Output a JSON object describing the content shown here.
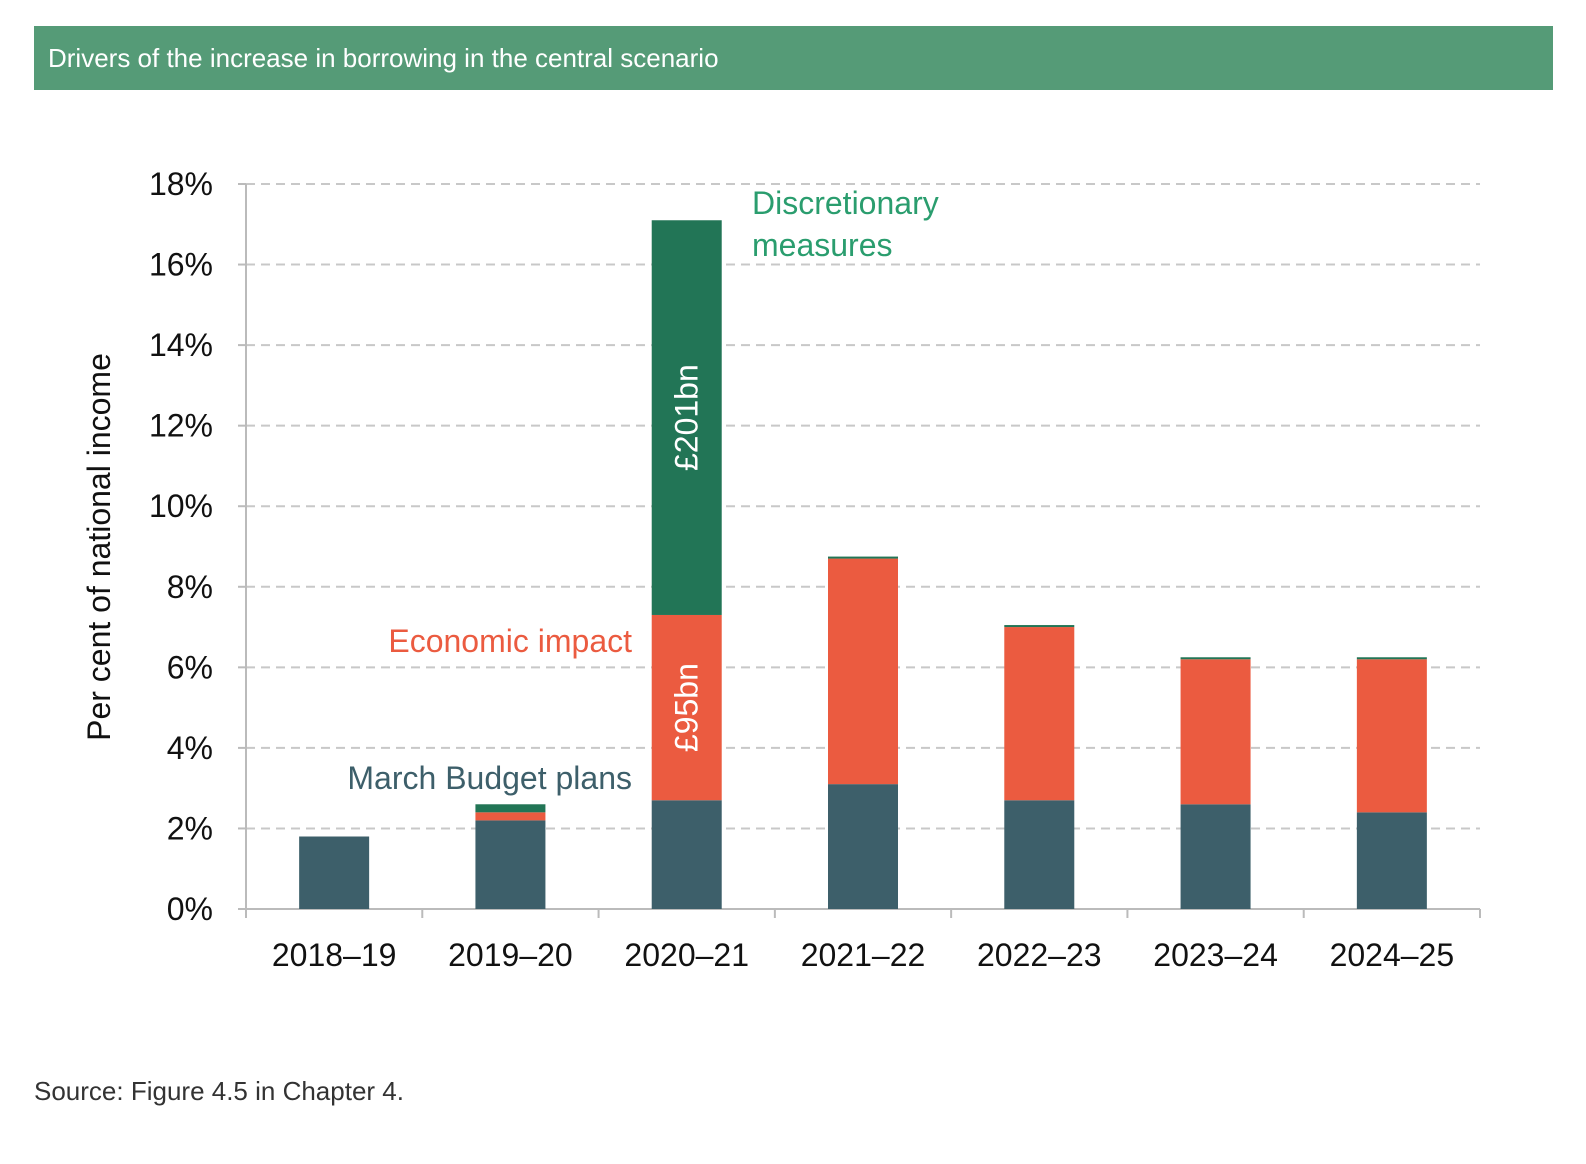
{
  "header": {
    "title": "Drivers of the increase in borrowing in the central scenario"
  },
  "source": "Source: Figure 4.5 in Chapter 4.",
  "chart_data": {
    "type": "bar",
    "stacked": true,
    "title": "",
    "xlabel": "",
    "ylabel": "Per cent of national income",
    "ylim": [
      0,
      18
    ],
    "yticks": [
      0,
      2,
      4,
      6,
      8,
      10,
      12,
      14,
      16,
      18
    ],
    "ytick_labels": [
      "0%",
      "2%",
      "4%",
      "6%",
      "8%",
      "10%",
      "12%",
      "14%",
      "16%",
      "18%"
    ],
    "grid": "horizontal dashed",
    "categories": [
      "2018–19",
      "2019–20",
      "2020–21",
      "2021–22",
      "2022–23",
      "2023–24",
      "2024–25"
    ],
    "series": [
      {
        "name": "March Budget plans",
        "color": "#3d5f6a",
        "label_color": "#3d5f6a",
        "values": [
          1.8,
          2.2,
          2.7,
          3.1,
          2.7,
          2.6,
          2.4
        ]
      },
      {
        "name": "Economic impact",
        "color": "#eb5b40",
        "label_color": "#eb5b40",
        "values": [
          0,
          0.2,
          4.6,
          5.6,
          4.3,
          3.6,
          3.8
        ]
      },
      {
        "name": "Discretionary measures",
        "color": "#227556",
        "label_color": "#2a9d6e",
        "values": [
          0,
          0.2,
          9.8,
          0.05,
          0.03,
          0.05,
          0.05
        ]
      }
    ],
    "series_label_lines": {
      "Discretionary measures": [
        "Discretionary",
        "measures"
      ]
    },
    "bar_labels": [
      {
        "category": "2020–21",
        "series": "Discretionary measures",
        "text": "£201bn"
      },
      {
        "category": "2020–21",
        "series": "Economic impact",
        "text": "£95bn"
      }
    ]
  }
}
